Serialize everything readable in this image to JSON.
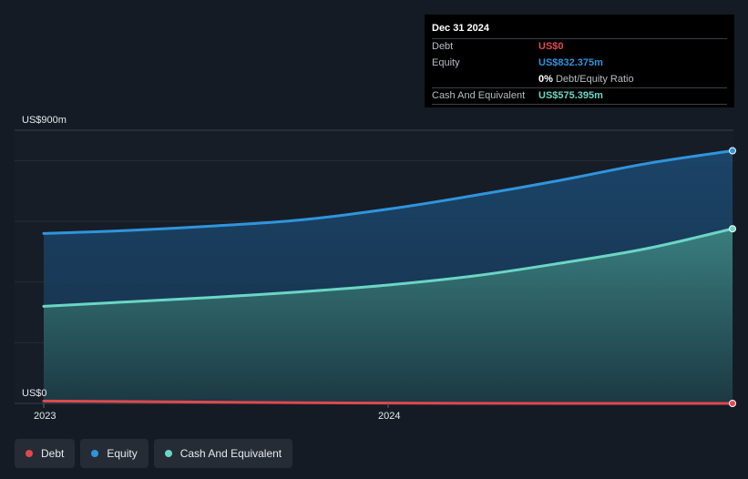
{
  "chart_data": {
    "type": "area",
    "y_axis_labels": {
      "top": "US$900m",
      "bottom": "US$0"
    },
    "ylim": [
      0,
      900
    ],
    "x_ticks": [
      "2023",
      "2024"
    ],
    "x_tick_values": [
      2023.0,
      2024.0
    ],
    "xlim": [
      2023.0,
      2025.0
    ],
    "grid": true,
    "legend_placement": "bottom-left",
    "series": [
      {
        "name": "Debt",
        "color": "#e0484f",
        "x": [
          2023.0,
          2023.5,
          2024.0,
          2024.5,
          2025.0
        ],
        "values": [
          8,
          4,
          1,
          0,
          0
        ]
      },
      {
        "name": "Equity",
        "color": "#2f95dc",
        "x": [
          2023.0,
          2023.25,
          2023.5,
          2023.75,
          2024.0,
          2024.25,
          2024.5,
          2024.75,
          2025.0
        ],
        "values": [
          560,
          570,
          585,
          605,
          640,
          685,
          735,
          790,
          832.375
        ]
      },
      {
        "name": "Cash And Equivalent",
        "color": "#6ad6c6",
        "x": [
          2023.0,
          2023.25,
          2023.5,
          2023.75,
          2024.0,
          2024.25,
          2024.5,
          2024.75,
          2025.0
        ],
        "values": [
          320,
          335,
          350,
          368,
          390,
          420,
          462,
          510,
          575.395
        ]
      }
    ]
  },
  "tooltip": {
    "date": "Dec 31 2024",
    "debt_label": "Debt",
    "debt_value": "US$0",
    "equity_label": "Equity",
    "equity_value": "US$832.375m",
    "ratio_value": "0%",
    "ratio_label": "Debt/Equity Ratio",
    "cash_label": "Cash And Equivalent",
    "cash_value": "US$575.395m"
  },
  "legend": [
    {
      "label": "Debt",
      "color": "#e0484f"
    },
    {
      "label": "Equity",
      "color": "#2f95dc"
    },
    {
      "label": "Cash And Equivalent",
      "color": "#6ad6c6"
    }
  ]
}
